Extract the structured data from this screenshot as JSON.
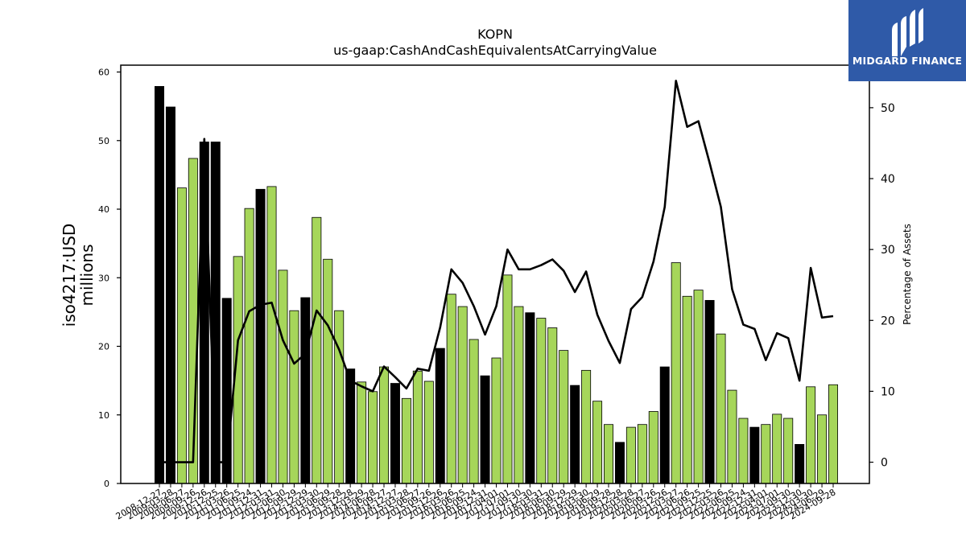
{
  "chart_data": {
    "type": "bar",
    "title": "KOPN",
    "subtitle": "us-gaap:CashAndCashEquivalentsAtCarryingValue",
    "ylabel": "iso4217:USD\nmillions",
    "y2label": "Percentage of Assets",
    "ylim": [
      0,
      61
    ],
    "y2lim": [
      -3,
      56
    ],
    "yticks": [
      0,
      10,
      20,
      30,
      40,
      50,
      60
    ],
    "y2ticks": [
      0,
      10,
      20,
      30,
      40,
      50
    ],
    "grid": false,
    "colors": {
      "quarter_bar": "#a6d65a",
      "annual_bar": "#000000",
      "line": "#000000",
      "edge": "#000000"
    },
    "categories": [
      "2008-12-27",
      "2009-03-28",
      "2009-06-27",
      "2009-09-26",
      "2009-12-26",
      "2010-12-25",
      "2011-03-26",
      "2011-06-25",
      "2011-09-24",
      "2011-12-31",
      "2012-03-31",
      "2012-06-30",
      "2012-09-29",
      "2012-12-29",
      "2013-03-30",
      "2013-06-29",
      "2013-09-28",
      "2013-12-28",
      "2014-03-29",
      "2014-06-28",
      "2014-09-27",
      "2014-12-27",
      "2015-03-28",
      "2015-06-27",
      "2015-09-26",
      "2015-12-26",
      "2016-03-26",
      "2016-06-25",
      "2016-09-24",
      "2016-12-31",
      "2017-04-01",
      "2017-07-01",
      "2017-09-30",
      "2017-12-30",
      "2018-03-31",
      "2018-06-30",
      "2018-09-29",
      "2018-12-29",
      "2019-03-30",
      "2019-06-29",
      "2019-09-28",
      "2019-12-28",
      "2020-03-28",
      "2020-06-27",
      "2020-09-26",
      "2020-12-26",
      "2021-03-27",
      "2021-06-26",
      "2021-09-25",
      "2021-12-25",
      "2022-03-26",
      "2022-06-25",
      "2022-09-24",
      "2022-12-31",
      "2023-04-01",
      "2023-07-01",
      "2023-09-30",
      "2023-12-30",
      "2024-03-30",
      "2024-06-29",
      "2024-09-28"
    ],
    "tick_labels": [
      "2008-12-27",
      "2009-03-28",
      "2009-06-27",
      "2009-09-26",
      "2009-12-26",
      "2010-12-25",
      "2011-03-26",
      "2011-06-25",
      "2011-09-24",
      "2011-12-31",
      "2012-03-31",
      "2012-06-30",
      "2012-09-29",
      "2012-12-29",
      "2013-03-30",
      "2013-06-29",
      "2013-09-28",
      "2013-12-28",
      "2014-03-29",
      "2014-06-28",
      "2014-09-27",
      "2014-12-27",
      "2015-03-28",
      "2015-06-27",
      "2015-09-26",
      "2015-12-26",
      "2016-03-26",
      "2016-06-25",
      "2016-09-24",
      "2016-12-31",
      "2017-04-01",
      "2017-07-01",
      "2017-09-30",
      "2017-12-30",
      "2018-03-31",
      "2018-06-30",
      "2018-09-29",
      "2018-12-29",
      "2019-03-30",
      "2019-06-29",
      "2019-09-28",
      "2019-12-28",
      "2020-03-28",
      "2020-06-27",
      "2020-09-26",
      "2020-12-26",
      "2021-03-27",
      "2021-06-26",
      "2021-09-25",
      "2021-12-25",
      "2022-03-26",
      "2022-06-25",
      "2022-09-24",
      "2022-12-31",
      "2023-04-01",
      "2023-07-01",
      "2023-09-30",
      "2023-12-30",
      "2024-03-30",
      "2024-06-29",
      "2024-09-28"
    ],
    "series": [
      {
        "type": "bar",
        "values": [
          57.9,
          54.9,
          43.1,
          47.4,
          49.8,
          49.8,
          27.0,
          33.1,
          40.1,
          42.9,
          43.3,
          31.1,
          25.2,
          27.1,
          38.8,
          32.7,
          25.2,
          16.7,
          14.8,
          13.4,
          17.0,
          14.6,
          12.4,
          16.4,
          14.9,
          19.7,
          27.6,
          25.8,
          21.0,
          15.7,
          18.3,
          30.4,
          25.8,
          24.9,
          24.1,
          22.7,
          19.4,
          14.3,
          16.5,
          12.0,
          8.6,
          6.0,
          8.2,
          8.6,
          10.5,
          17.0,
          32.2,
          27.3,
          28.2,
          26.7,
          21.8,
          13.6,
          9.5,
          8.2,
          8.6,
          10.1,
          9.5,
          5.7,
          14.1,
          10.0,
          14.4
        ],
        "annual": [
          true,
          true,
          false,
          false,
          true,
          true,
          true,
          false,
          false,
          true,
          false,
          false,
          false,
          true,
          false,
          false,
          false,
          true,
          false,
          false,
          false,
          true,
          false,
          false,
          false,
          true,
          false,
          false,
          false,
          true,
          false,
          false,
          false,
          true,
          false,
          false,
          false,
          true,
          false,
          false,
          false,
          true,
          false,
          false,
          false,
          true,
          false,
          false,
          false,
          true,
          false,
          false,
          false,
          true,
          false,
          false,
          false,
          true,
          false,
          false,
          false
        ]
      },
      {
        "type": "line",
        "axis": "right",
        "values": [
          0,
          0,
          0,
          0,
          45.6,
          0,
          0,
          17.2,
          21.3,
          22.2,
          22.5,
          17.2,
          13.9,
          15.3,
          21.4,
          19.3,
          15.9,
          11.5,
          10.7,
          10.0,
          13.5,
          12.0,
          10.4,
          13.2,
          12.9,
          19.0,
          27.2,
          25.3,
          22.0,
          18.0,
          22.0,
          30.0,
          27.2,
          27.2,
          27.8,
          28.6,
          27.0,
          24.0,
          26.9,
          20.8,
          17.1,
          14.0,
          21.6,
          23.3,
          28.3,
          36.0,
          53.8,
          47.3,
          48.1,
          42.2,
          36.0,
          24.4,
          19.4,
          18.8,
          14.4,
          18.2,
          17.5,
          11.5,
          27.4,
          20.4,
          20.6
        ]
      }
    ]
  },
  "logo": {
    "text": "MIDGARD FINANCE"
  }
}
